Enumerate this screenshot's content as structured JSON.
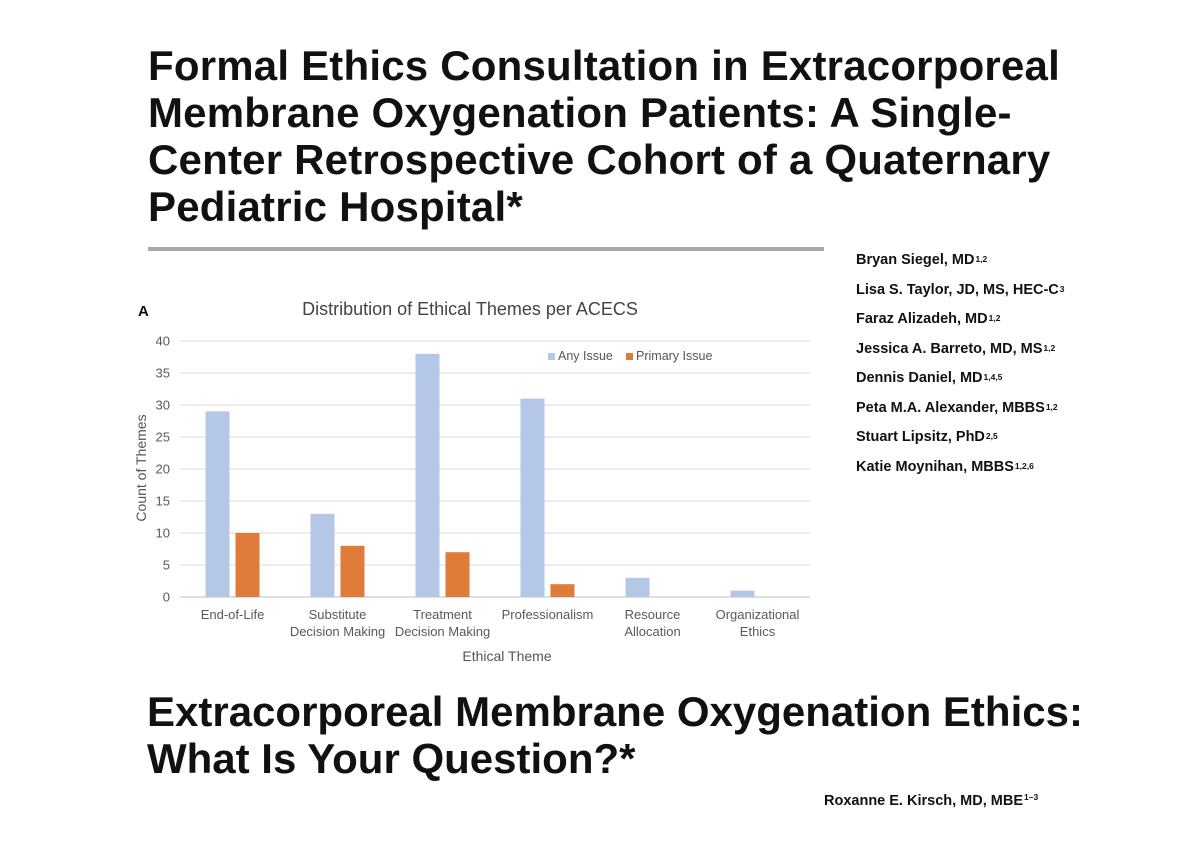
{
  "article1": {
    "title": "Formal Ethics Consultation in Extracorporeal Membrane Oxygenation Patients: A Single-Center Retrospective Cohort of a Quaternary Pediatric Hospital*",
    "authors": [
      {
        "name": "Bryan Siegel, MD",
        "affil": "1,2"
      },
      {
        "name": "Lisa S. Taylor, JD, MS, HEC-C",
        "affil": "3"
      },
      {
        "name": "Faraz Alizadeh, MD",
        "affil": "1,2"
      },
      {
        "name": "Jessica A. Barreto, MD, MS",
        "affil": "1,2"
      },
      {
        "name": "Dennis Daniel, MD",
        "affil": "1,4,5"
      },
      {
        "name": "Peta M.A. Alexander, MBBS",
        "affil": "1,2"
      },
      {
        "name": "Stuart Lipsitz, PhD",
        "affil": "2,5"
      },
      {
        "name": "Katie Moynihan, MBBS",
        "affil": "1,2,6"
      }
    ]
  },
  "article2": {
    "title": "Extracorporeal Membrane Oxygenation Ethics: What Is Your Question?*",
    "author": {
      "name": "Roxanne E. Kirsch, MD, MBE",
      "affil": "1–3"
    }
  },
  "chart_data": {
    "type": "bar",
    "panel_label": "A",
    "title": "Distribution of Ethical Themes per ACECS",
    "xlabel": "Ethical Theme",
    "ylabel": "Count of Themes",
    "ylim": [
      0,
      40
    ],
    "yticks": [
      0,
      5,
      10,
      15,
      20,
      25,
      30,
      35,
      40
    ],
    "grid": true,
    "legend_position": "top-right",
    "categories": [
      [
        "End-of-Life"
      ],
      [
        "Substitute",
        "Decision Making"
      ],
      [
        "Treatment",
        "Decision Making"
      ],
      [
        "Professionalism"
      ],
      [
        "Resource",
        "Allocation"
      ],
      [
        "Organizational",
        "Ethics"
      ]
    ],
    "series": [
      {
        "name": "Any Issue",
        "color": "#b4c7e7",
        "values": [
          29,
          13,
          38,
          31,
          3,
          1
        ]
      },
      {
        "name": "Primary Issue",
        "color": "#e07b39",
        "values": [
          10,
          8,
          7,
          2,
          0,
          0
        ]
      }
    ]
  }
}
